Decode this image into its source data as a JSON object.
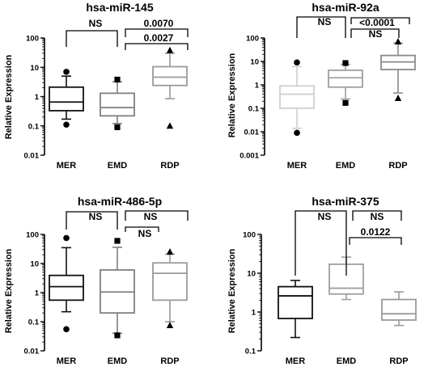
{
  "chart_data": [
    {
      "type": "boxplot",
      "title": "hsa-miR-145",
      "ylabel": "Relative Expression",
      "yscale": "log",
      "ylim": [
        0.01,
        100
      ],
      "yticks": [
        "100",
        "10",
        "1",
        "0.1",
        "0.01"
      ],
      "categories": [
        "MER",
        "EMD",
        "RDP"
      ],
      "series": [
        {
          "category": "MER",
          "color": "#111111",
          "marker": "circle",
          "whisker_low": 0.17,
          "q1": 0.33,
          "median": 0.65,
          "q3": 2.1,
          "whisker_high": 5.0,
          "outliers": [
            0.11,
            7.0
          ]
        },
        {
          "category": "EMD",
          "color": "#7f7f7f",
          "marker": "square",
          "whisker_low": 0.12,
          "q1": 0.22,
          "median": 0.42,
          "q3": 1.3,
          "whisker_high": 3.2,
          "outliers": [
            0.09,
            3.8
          ]
        },
        {
          "category": "RDP",
          "color": "#9a9a9a",
          "marker": "triangle",
          "whisker_low": 0.85,
          "q1": 2.4,
          "median": 4.6,
          "q3": 10.5,
          "whisker_high": 30,
          "outliers": [
            0.1,
            38
          ]
        }
      ],
      "comparisons": [
        {
          "from": "MER",
          "to": "EMD",
          "label": "NS"
        },
        {
          "from": "EMD",
          "to": "RDP",
          "label": "0.0070"
        },
        {
          "from": "EMD",
          "to": "RDP",
          "label": "0.0027"
        }
      ]
    },
    {
      "type": "boxplot",
      "title": "hsa-miR-92a",
      "ylabel": "Relative Expression",
      "yscale": "log",
      "ylim": [
        0.001,
        100
      ],
      "yticks": [
        "100",
        "10",
        "1",
        "0.1",
        "0.01",
        "0.001"
      ],
      "categories": [
        "MER",
        "EMD",
        "RDP"
      ],
      "series": [
        {
          "category": "MER",
          "color": "#cfcfcf",
          "marker": "circle",
          "whisker_low": 0.014,
          "q1": 0.1,
          "median": 0.4,
          "q3": 0.9,
          "whisker_high": 6.0,
          "outliers": [
            0.009,
            9.0
          ]
        },
        {
          "category": "EMD",
          "color": "#9f9f9f",
          "marker": "square",
          "whisker_low": 0.25,
          "q1": 0.8,
          "median": 2.0,
          "q3": 4.2,
          "whisker_high": 7.5,
          "outliers": [
            0.17,
            8.5
          ]
        },
        {
          "category": "RDP",
          "color": "#8a8a8a",
          "marker": "triangle",
          "whisker_low": 0.45,
          "q1": 4.5,
          "median": 9.5,
          "q3": 18,
          "whisker_high": 60,
          "outliers": [
            0.27,
            70
          ]
        }
      ],
      "comparisons": [
        {
          "from": "MER",
          "to": "EMD",
          "label": "NS"
        },
        {
          "from": "EMD",
          "to": "RDP",
          "label": "<0.0001"
        },
        {
          "from": "EMD",
          "to": "RDP",
          "label": "NS"
        }
      ]
    },
    {
      "type": "boxplot",
      "title": "hsa-miR-486-5p",
      "ylabel": "Relative Expression",
      "yscale": "log",
      "ylim": [
        0.01,
        100
      ],
      "yticks": [
        "100",
        "10",
        "1",
        "0.1",
        "0.01"
      ],
      "categories": [
        "MER",
        "EMD",
        "RDP"
      ],
      "series": [
        {
          "category": "MER",
          "color": "#111111",
          "marker": "circle",
          "whisker_low": 0.22,
          "q1": 0.55,
          "median": 1.6,
          "q3": 3.9,
          "whisker_high": 35,
          "outliers": [
            0.055,
            75
          ]
        },
        {
          "category": "EMD",
          "color": "#7f7f7f",
          "marker": "square",
          "whisker_low": 0.04,
          "q1": 0.2,
          "median": 1.05,
          "q3": 6.0,
          "whisker_high": 36,
          "outliers": [
            0.034,
            60
          ]
        },
        {
          "category": "RDP",
          "color": "#9a9a9a",
          "marker": "triangle",
          "whisker_low": 0.1,
          "q1": 0.55,
          "median": 4.6,
          "q3": 10.5,
          "whisker_high": 21,
          "outliers": [
            0.075,
            25
          ]
        }
      ],
      "comparisons": [
        {
          "from": "MER",
          "to": "EMD",
          "label": "NS"
        },
        {
          "from": "EMD",
          "to": "RDP",
          "label": "NS"
        },
        {
          "from": "EMD",
          "to": "RDP",
          "label": "NS"
        }
      ]
    },
    {
      "type": "boxplot",
      "title": "hsa-miR-375",
      "ylabel": "Relative Expression",
      "yscale": "log",
      "ylim": [
        0.1,
        100
      ],
      "yticks": [
        "100",
        "10",
        "1",
        "0.1"
      ],
      "categories": [
        "MER",
        "EMD",
        "RDP"
      ],
      "series": [
        {
          "category": "MER",
          "color": "#111111",
          "marker": "",
          "whisker_low": 0.22,
          "q1": 0.68,
          "median": 2.6,
          "q3": 4.5,
          "whisker_high": 6.5,
          "outliers": []
        },
        {
          "category": "EMD",
          "color": "#9f9f9f",
          "marker": "",
          "whisker_low": 2.1,
          "q1": 2.9,
          "median": 4.1,
          "q3": 17,
          "whisker_high": 26,
          "outliers": []
        },
        {
          "category": "RDP",
          "color": "#9a9a9a",
          "marker": "",
          "whisker_low": 0.45,
          "q1": 0.62,
          "median": 0.9,
          "q3": 2.1,
          "whisker_high": 3.3,
          "outliers": []
        }
      ],
      "comparisons": [
        {
          "from": "MER",
          "to": "EMD",
          "label": "NS"
        },
        {
          "from": "EMD",
          "to": "RDP",
          "label": "NS"
        },
        {
          "from": "EMD",
          "to": "RDP",
          "label": "0.0122"
        }
      ]
    }
  ]
}
